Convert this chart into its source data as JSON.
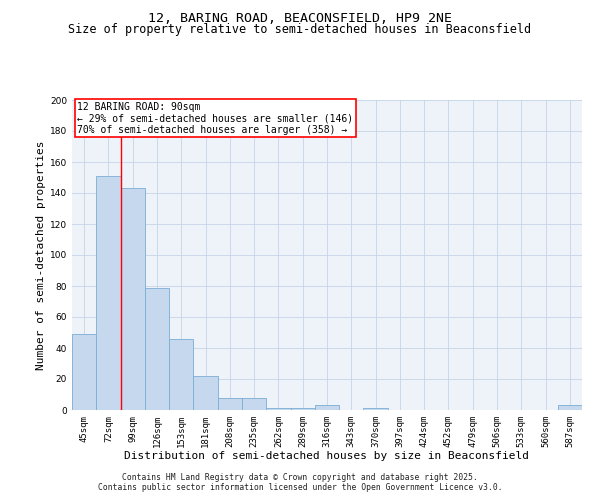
{
  "title": "12, BARING ROAD, BEACONSFIELD, HP9 2NE",
  "subtitle": "Size of property relative to semi-detached houses in Beaconsfield",
  "xlabel": "Distribution of semi-detached houses by size in Beaconsfield",
  "ylabel": "Number of semi-detached properties",
  "categories": [
    "45sqm",
    "72sqm",
    "99sqm",
    "126sqm",
    "153sqm",
    "181sqm",
    "208sqm",
    "235sqm",
    "262sqm",
    "289sqm",
    "316sqm",
    "343sqm",
    "370sqm",
    "397sqm",
    "424sqm",
    "452sqm",
    "479sqm",
    "506sqm",
    "533sqm",
    "560sqm",
    "587sqm"
  ],
  "values": [
    49,
    151,
    143,
    79,
    46,
    22,
    8,
    8,
    1,
    1,
    3,
    0,
    1,
    0,
    0,
    0,
    0,
    0,
    0,
    0,
    3
  ],
  "bar_color": "#c5d8ed",
  "bar_edge_color": "#7aaed4",
  "ylim": [
    0,
    200
  ],
  "yticks": [
    0,
    20,
    40,
    60,
    80,
    100,
    120,
    140,
    160,
    180,
    200
  ],
  "property_line_x": 1.5,
  "annotation_text_line1": "12 BARING ROAD: 90sqm",
  "annotation_text_line2": "← 29% of semi-detached houses are smaller (146)",
  "annotation_text_line3": "70% of semi-detached houses are larger (358) →",
  "footer_line1": "Contains HM Land Registry data © Crown copyright and database right 2025.",
  "footer_line2": "Contains public sector information licensed under the Open Government Licence v3.0.",
  "background_color": "#eef3f9",
  "grid_color": "#c5d5e8",
  "title_fontsize": 9.5,
  "subtitle_fontsize": 8.5,
  "axis_label_fontsize": 8,
  "tick_fontsize": 6.5,
  "annotation_fontsize": 7,
  "footer_fontsize": 5.8
}
